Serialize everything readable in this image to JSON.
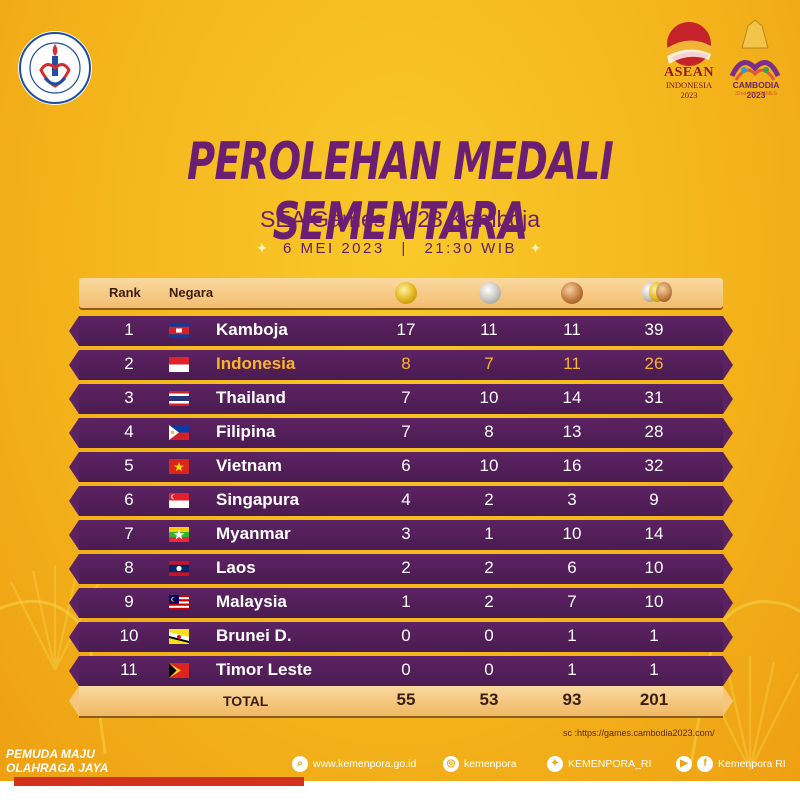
{
  "header": {
    "title": "PEROLEHAN MEDALI SEMENTARA",
    "subtitle": "SEA Games 2023 Kamboja",
    "date": "6 MEI 2023",
    "separator": "|",
    "time": "21:30 WIB"
  },
  "logos": {
    "left": "kemenpora-logo",
    "asean_title": "ASEAN",
    "asean_sub1": "INDONESIA",
    "asean_sub2": "2023",
    "sea_title": "CAMBODIA 2023",
    "sea_sub": "32nd SEA GAMES"
  },
  "table": {
    "col_rank": "Rank",
    "col_country": "Negara",
    "rows": [
      {
        "rank": "1",
        "country": "Kamboja",
        "gold": "17",
        "silver": "11",
        "bronze": "11",
        "total": "39",
        "flag": "cambodia"
      },
      {
        "rank": "2",
        "country": "Indonesia",
        "gold": "8",
        "silver": "7",
        "bronze": "11",
        "total": "26",
        "flag": "indonesia"
      },
      {
        "rank": "3",
        "country": "Thailand",
        "gold": "7",
        "silver": "10",
        "bronze": "14",
        "total": "31",
        "flag": "thailand"
      },
      {
        "rank": "4",
        "country": "Filipina",
        "gold": "7",
        "silver": "8",
        "bronze": "13",
        "total": "28",
        "flag": "philippines"
      },
      {
        "rank": "5",
        "country": "Vietnam",
        "gold": "6",
        "silver": "10",
        "bronze": "16",
        "total": "32",
        "flag": "vietnam"
      },
      {
        "rank": "6",
        "country": "Singapura",
        "gold": "4",
        "silver": "2",
        "bronze": "3",
        "total": "9",
        "flag": "singapore"
      },
      {
        "rank": "7",
        "country": "Myanmar",
        "gold": "3",
        "silver": "1",
        "bronze": "10",
        "total": "14",
        "flag": "myanmar"
      },
      {
        "rank": "8",
        "country": "Laos",
        "gold": "2",
        "silver": "2",
        "bronze": "6",
        "total": "10",
        "flag": "laos"
      },
      {
        "rank": "9",
        "country": "Malaysia",
        "gold": "1",
        "silver": "2",
        "bronze": "7",
        "total": "10",
        "flag": "malaysia"
      },
      {
        "rank": "10",
        "country": "Brunei D.",
        "gold": "0",
        "silver": "0",
        "bronze": "1",
        "total": "1",
        "flag": "brunei"
      },
      {
        "rank": "11",
        "country": "Timor Leste",
        "gold": "0",
        "silver": "0",
        "bronze": "1",
        "total": "1",
        "flag": "timor-leste"
      }
    ],
    "total": {
      "label": "TOTAL",
      "gold": "55",
      "silver": "53",
      "bronze": "93",
      "total": "201"
    }
  },
  "source": "sc :https://games.cambodia2023.com/",
  "footer": {
    "slogan_line1": "PEMUDA MAJU",
    "slogan_line2": "OLAHRAGA JAYA",
    "website": "www.kemenpora.go.id",
    "instagram": "kemenpora",
    "twitter": "KEMENPORA_RI",
    "facebook": "Kemenpora RI"
  },
  "colors": {
    "background": "#f4b51c",
    "row_purple": "#4a1b50",
    "title_purple": "#6a1f72",
    "highlight": "#f8b52a"
  }
}
